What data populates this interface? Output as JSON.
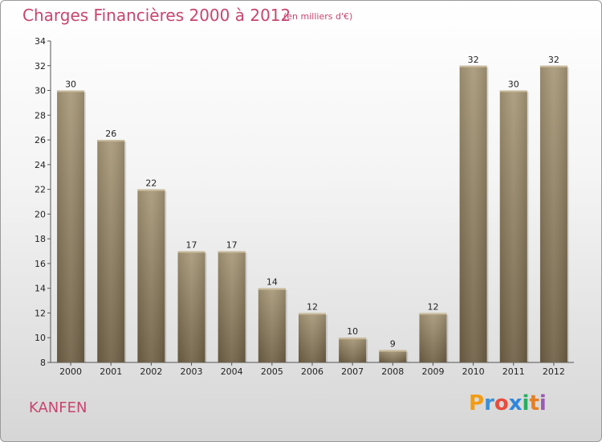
{
  "header": {
    "title": "Charges Financières 2000 à 2012",
    "subtitle": "(en milliers d'€)"
  },
  "footer": {
    "city": "KANFEN",
    "logo": {
      "letters": [
        "P",
        "r",
        "o",
        "x",
        "i",
        "t",
        "i"
      ],
      "colors": [
        "#f39c12",
        "#3b8fd6",
        "#e74c3c",
        "#2e86de",
        "#27ae60",
        "#e67e22",
        "#9b59b6"
      ]
    }
  },
  "chart_data": {
    "type": "bar",
    "categories": [
      "2000",
      "2001",
      "2002",
      "2003",
      "2004",
      "2005",
      "2006",
      "2007",
      "2008",
      "2009",
      "2010",
      "2011",
      "2012"
    ],
    "values": [
      30,
      26,
      22,
      17,
      17,
      14,
      12,
      10,
      9,
      12,
      32,
      30,
      32
    ],
    "data_labels": [
      "30",
      "26",
      "22",
      "17",
      "17",
      "14",
      "12",
      "10",
      "9",
      "12",
      "32",
      "30",
      "32"
    ],
    "title": "Charges Financières 2000 à 2012",
    "xlabel": "",
    "ylabel": "",
    "ylim": [
      8,
      34
    ],
    "yticks": [
      "8",
      "10",
      "12",
      "14",
      "16",
      "18",
      "20",
      "22",
      "24",
      "26",
      "28",
      "30",
      "32",
      "34"
    ],
    "grid": false,
    "bar_color": "#8a7a5f"
  }
}
